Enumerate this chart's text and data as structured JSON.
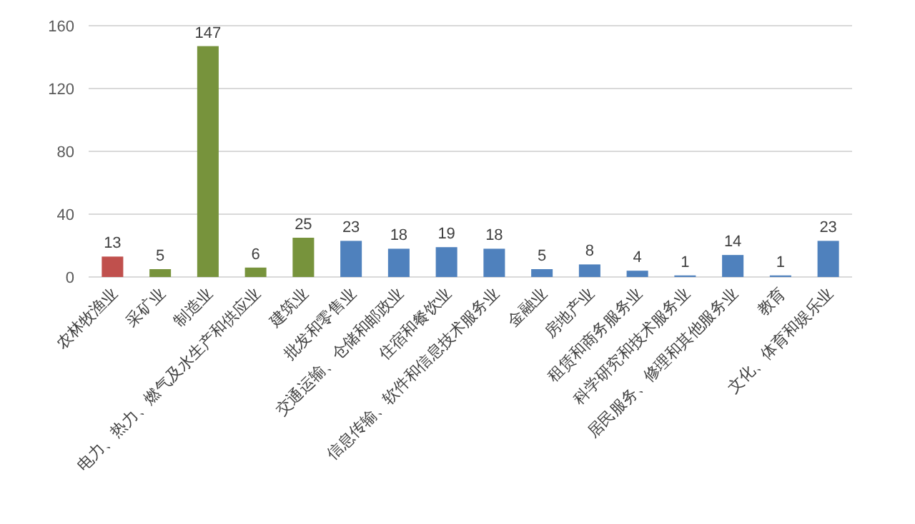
{
  "chart_data": {
    "type": "bar",
    "categories": [
      "农林牧渔业",
      "采矿业",
      "制造业",
      "电力、热力、燃气及水生产和供应业",
      "建筑业",
      "批发和零售业",
      "交通运输、仓储和邮政业",
      "住宿和餐饮业",
      "信息传输、软件和信息技术服务业",
      "金融业",
      "房地产业",
      "租赁和商务服务业",
      "科学研究和技术服务业",
      "居民服务、修理和其他服务业",
      "教育",
      "文化、体育和娱乐业"
    ],
    "values": [
      13,
      5,
      147,
      6,
      25,
      23,
      18,
      19,
      18,
      5,
      8,
      4,
      1,
      14,
      1,
      23
    ],
    "colors": [
      "#c0504d",
      "#77933c",
      "#77933c",
      "#77933c",
      "#77933c",
      "#4f81bd",
      "#4f81bd",
      "#4f81bd",
      "#4f81bd",
      "#4f81bd",
      "#4f81bd",
      "#4f81bd",
      "#4f81bd",
      "#4f81bd",
      "#4f81bd",
      "#4f81bd"
    ],
    "ylim": [
      0,
      160
    ],
    "yticks": [
      0,
      40,
      80,
      120,
      160
    ],
    "grid": "y",
    "data_labels": true
  }
}
